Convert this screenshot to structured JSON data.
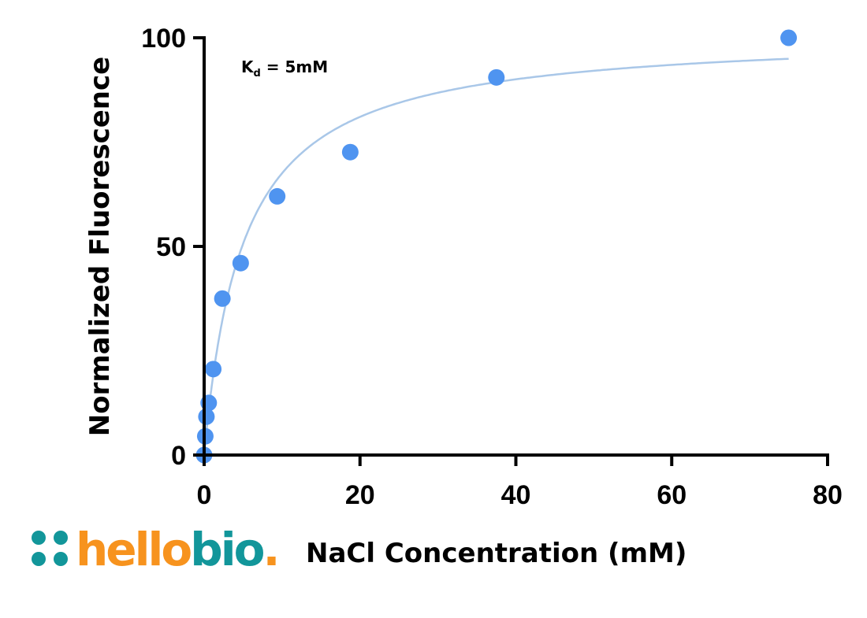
{
  "chart_data": {
    "type": "scatter",
    "title": "",
    "xlabel": "NaCl Concentration (mM)",
    "ylabel": "Normalized Fluorescence",
    "xlim": [
      0,
      80
    ],
    "ylim": [
      0,
      100
    ],
    "xticks": [
      "0",
      "20",
      "40",
      "60",
      "80"
    ],
    "yticks": [
      "0",
      "50",
      "100"
    ],
    "grid": false,
    "annotation": {
      "main": "K",
      "sub": "d",
      "rest": " = 5mM"
    },
    "series": [
      {
        "points": [
          {
            "x": 0,
            "y": 0
          },
          {
            "x": 0.146,
            "y": 4.5
          },
          {
            "x": 0.293,
            "y": 9.2
          },
          {
            "x": 0.586,
            "y": 12.5
          },
          {
            "x": 1.17,
            "y": 20.6
          },
          {
            "x": 2.34,
            "y": 37.5
          },
          {
            "x": 4.69,
            "y": 46
          },
          {
            "x": 9.375,
            "y": 62
          },
          {
            "x": 18.75,
            "y": 72.6
          },
          {
            "x": 37.5,
            "y": 90.5
          },
          {
            "x": 75,
            "y": 100
          }
        ],
        "fit": {
          "model": "one-site binding",
          "Kd": 5,
          "Bmax": 101.3,
          "x_range": [
            0,
            75
          ]
        }
      }
    ],
    "colors": {
      "points": "#4f94f0",
      "fit_line": "#a9c7e8",
      "axes": "#000000"
    }
  },
  "logo": {
    "part1": "hello",
    "part2": "bio",
    "dot": ".",
    "colors": {
      "orange": "#f7931e",
      "teal": "#12969a"
    }
  }
}
